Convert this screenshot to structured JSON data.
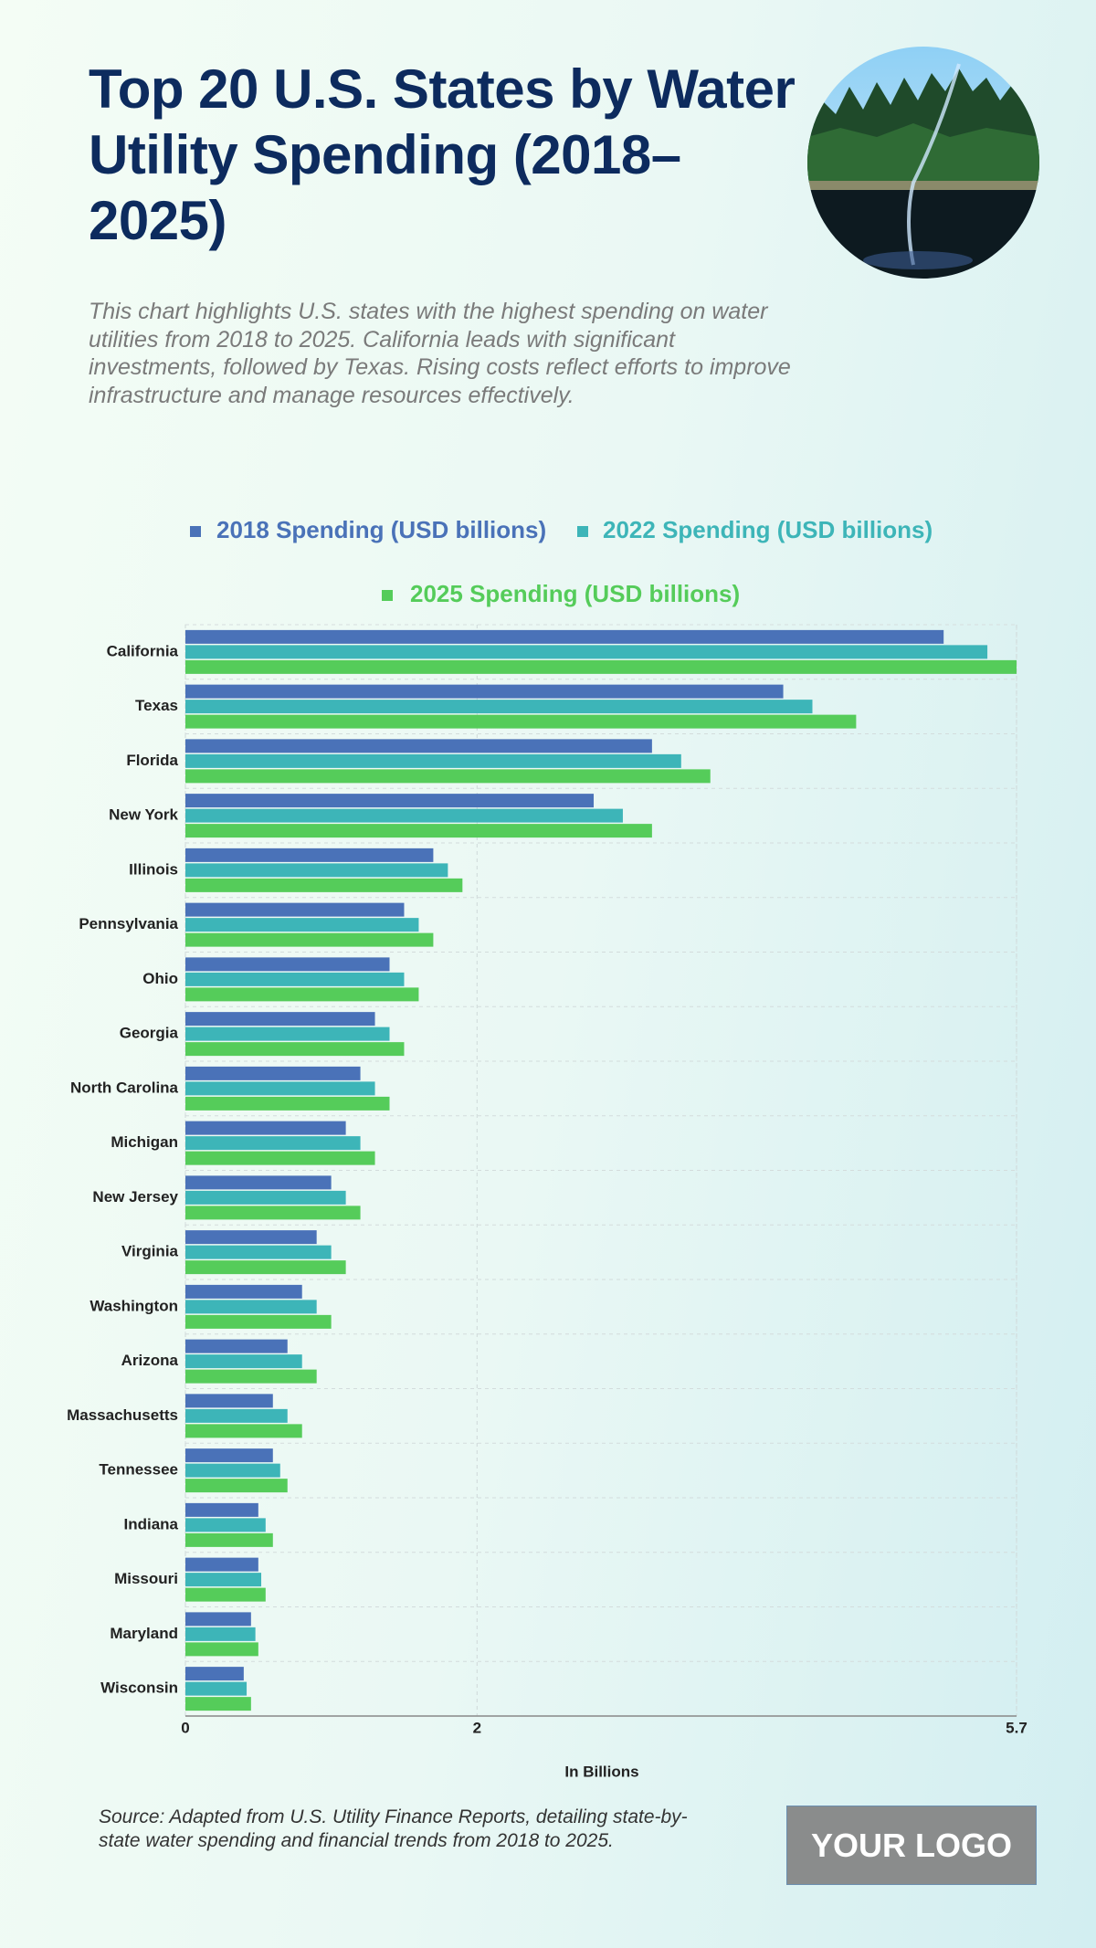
{
  "chart_data": {
    "type": "hbar",
    "title": "Top 20 U.S. States by Water Utility Spending (2018–2025)",
    "subtitle": "This chart highlights U.S. states with the highest spending on water utilities from 2018 to 2025. California leads with significant investments, followed by Texas. Rising costs reflect efforts to improve infrastructure and manage resources effectively.",
    "categories": [
      "California",
      "Texas",
      "Florida",
      "New York",
      "Illinois",
      "Pennsylvania",
      "Ohio",
      "Georgia",
      "North Carolina",
      "Michigan",
      "New Jersey",
      "Virginia",
      "Washington",
      "Arizona",
      "Massachusetts",
      "Tennessee",
      "Indiana",
      "Missouri",
      "Maryland",
      "Wisconsin"
    ],
    "series": [
      {
        "name": "2018 Spending (USD billions)",
        "color": "#4a72b8",
        "values": [
          5.2,
          4.1,
          3.2,
          2.8,
          1.7,
          1.5,
          1.4,
          1.3,
          1.2,
          1.1,
          1.0,
          0.9,
          0.8,
          0.7,
          0.6,
          0.6,
          0.5,
          0.5,
          0.45,
          0.4
        ]
      },
      {
        "name": "2022 Spending (USD billions)",
        "color": "#3db5b8",
        "values": [
          5.5,
          4.3,
          3.4,
          3.0,
          1.8,
          1.6,
          1.5,
          1.4,
          1.3,
          1.2,
          1.1,
          1.0,
          0.9,
          0.8,
          0.7,
          0.65,
          0.55,
          0.52,
          0.48,
          0.42
        ]
      },
      {
        "name": "2025 Spending (USD billions)",
        "color": "#55cc5a",
        "values": [
          5.7,
          4.6,
          3.6,
          3.2,
          1.9,
          1.7,
          1.6,
          1.5,
          1.4,
          1.3,
          1.2,
          1.1,
          1.0,
          0.9,
          0.8,
          0.7,
          0.6,
          0.55,
          0.5,
          0.45
        ]
      }
    ],
    "xlim": [
      0,
      5.7
    ],
    "xticks": [
      0,
      2,
      5.7
    ],
    "xlabel": "In Billions",
    "grid": true,
    "source": "Source: Adapted from U.S. Utility Finance Reports, detailing state-by-state water spending and financial trends from 2018 to 2025.",
    "logo": "YOUR LOGO"
  }
}
